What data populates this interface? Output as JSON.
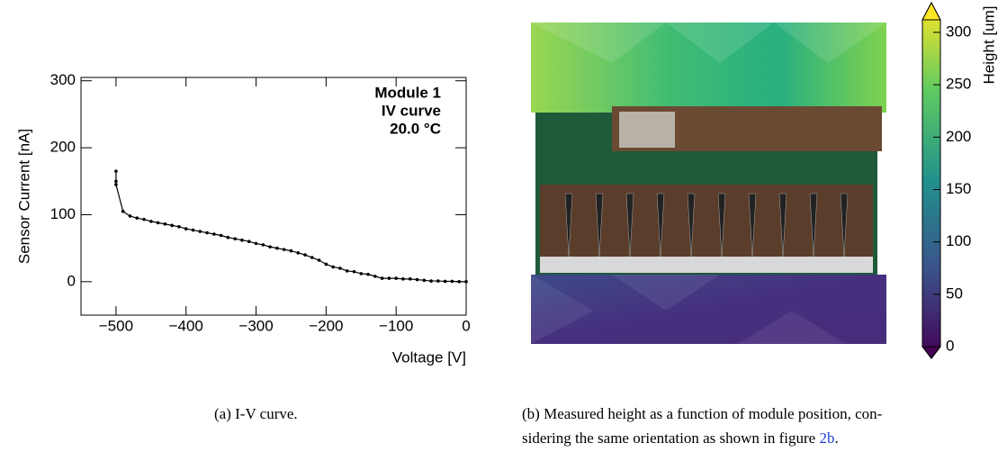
{
  "chart_data": [
    {
      "type": "line",
      "x": [
        -500,
        -500,
        -500,
        -490,
        -480,
        -470,
        -460,
        -450,
        -440,
        -430,
        -420,
        -410,
        -400,
        -390,
        -380,
        -370,
        -360,
        -350,
        -340,
        -330,
        -320,
        -310,
        -300,
        -290,
        -280,
        -270,
        -260,
        -250,
        -240,
        -230,
        -220,
        -210,
        -200,
        -190,
        -180,
        -170,
        -160,
        -150,
        -140,
        -130,
        -120,
        -110,
        -100,
        -90,
        -80,
        -70,
        -60,
        -50,
        -40,
        -30,
        -20,
        -10,
        0
      ],
      "series": [
        {
          "color": "#000000",
          "values": [
            165,
            150,
            145,
            105,
            98,
            95,
            93,
            90,
            88,
            86,
            84,
            82,
            79,
            77,
            75,
            73,
            71,
            69,
            66,
            64,
            62,
            60,
            57,
            55,
            52,
            50,
            48,
            46,
            43,
            40,
            36,
            32,
            26,
            22,
            20,
            16,
            15,
            12,
            11,
            8,
            5,
            5,
            5,
            4,
            4,
            3,
            2,
            1,
            1,
            0.5,
            0.5,
            0,
            0
          ]
        }
      ],
      "xlim": [
        -550,
        0
      ],
      "ylim": [
        -50,
        305
      ],
      "xticks": [
        {
          "value": -500,
          "label": "−500"
        },
        {
          "value": -400,
          "label": "−400"
        },
        {
          "value": -300,
          "label": "−300"
        },
        {
          "value": -200,
          "label": "−200"
        },
        {
          "value": -100,
          "label": "−100"
        },
        0
      ],
      "yticks": [
        0,
        100,
        200,
        300
      ],
      "x_label": "Voltage [V]",
      "y_label": "Sensor Current [nA]",
      "annotations": [
        "Module 1",
        "IV curve",
        "20.0 °C"
      ]
    },
    {
      "type": "heatmap",
      "colorbar_label": "Height [um]",
      "clim": [
        0,
        312
      ],
      "cticks": [
        0,
        50,
        100,
        150,
        200,
        250,
        300
      ]
    }
  ],
  "captions": {
    "a": "(a) I-V curve.",
    "b_line1": "(b) Measured height as a function of module position, con-",
    "b_line2": "sidering the same orientation as shown in figure ",
    "b_ref": "2b",
    "b_end": "."
  }
}
